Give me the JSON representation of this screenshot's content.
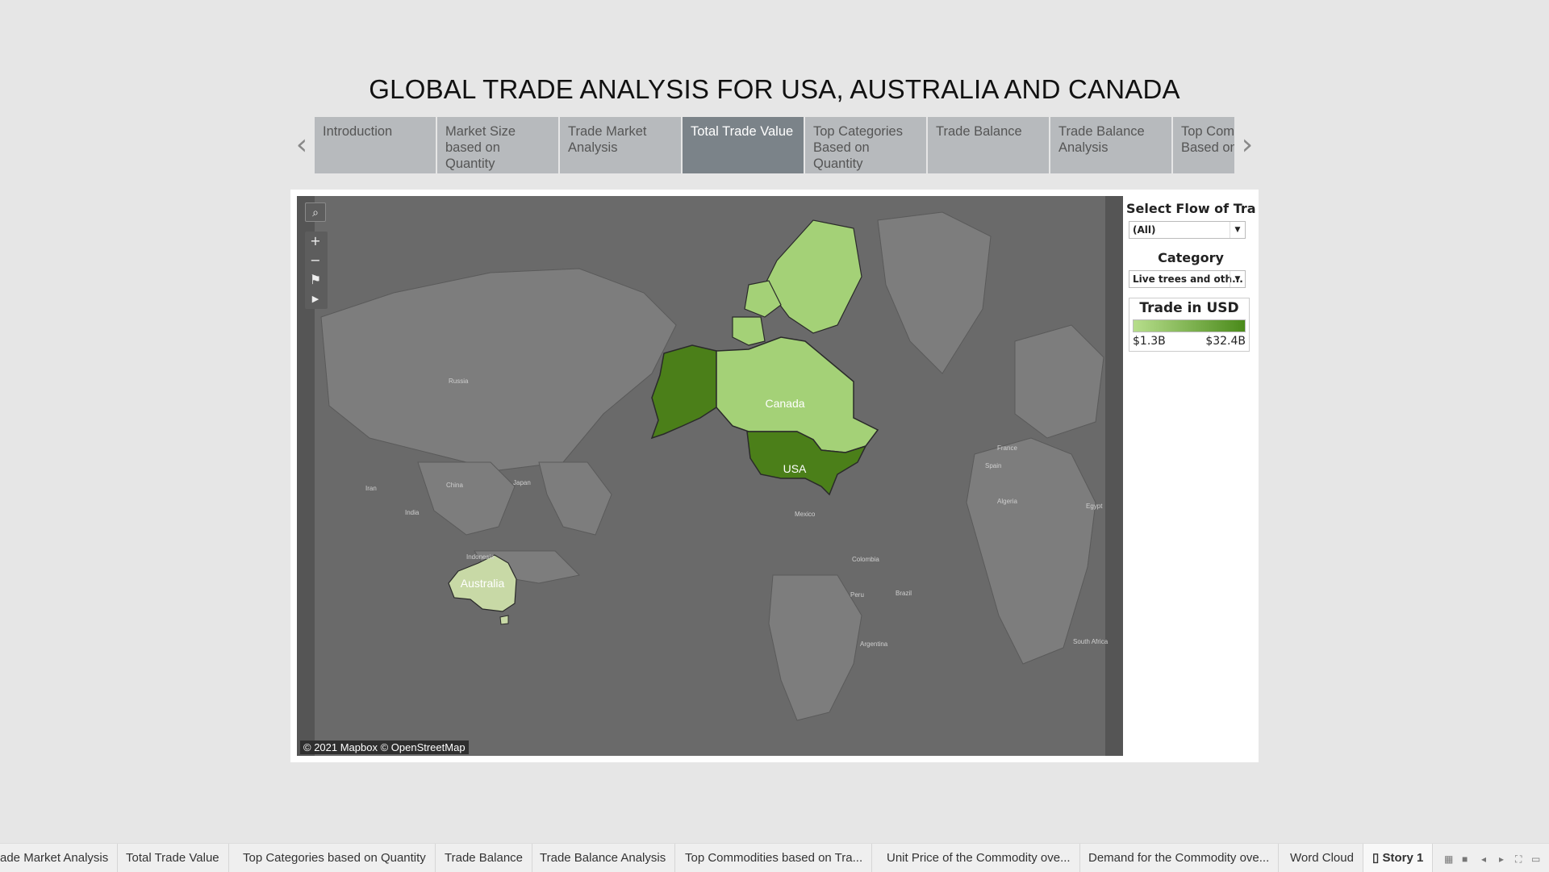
{
  "title": "GLOBAL TRADE ANALYSIS FOR USA, AUSTRALIA AND CANADA",
  "story_tabs": [
    {
      "label": "Introduction",
      "active": false
    },
    {
      "label": "Market Size based on Quantity",
      "active": false
    },
    {
      "label": "Trade Market Analysis",
      "active": false
    },
    {
      "label": "Total Trade Value",
      "active": true
    },
    {
      "label": "Top Categories Based on Quantity",
      "active": false
    },
    {
      "label": "Trade Balance",
      "active": false
    },
    {
      "label": "Trade Balance Analysis",
      "active": false
    },
    {
      "label": "Top Commodities Based on Value",
      "active": false
    }
  ],
  "map": {
    "attribution": "© 2021 Mapbox © OpenStreetMap",
    "countries": [
      {
        "name": "Canada",
        "label": "Canada",
        "color": "#a4d177"
      },
      {
        "name": "USA",
        "label": "USA",
        "color": "#4b7f19"
      },
      {
        "name": "Australia",
        "label": "Australia",
        "color": "#c8d9a6"
      }
    ],
    "basemap_labels": [
      "Russia",
      "China",
      "Japan",
      "India",
      "Iran",
      "Indonesia",
      "Mexico",
      "Colombia",
      "Peru",
      "Brazil",
      "Argentina",
      "France",
      "Spain",
      "Algeria",
      "Egypt",
      "South Africa"
    ]
  },
  "filters": {
    "flow": {
      "title": "Select Flow of Tra..",
      "value": "(All)"
    },
    "category": {
      "title": "Category",
      "value": "Live trees and oth..."
    }
  },
  "legend": {
    "title": "Trade in USD",
    "min": "$1.3B",
    "max": "$32.4B",
    "color_low": "#b7de8c",
    "color_high": "#4a8a1a"
  },
  "sheet_tabs": [
    "ade Market Analysis",
    "Total Trade Value",
    "Top Categories based on Quantity",
    "Trade Balance",
    "Trade Balance Analysis",
    "Top Commodities based on Tra...",
    "Unit Price of the Commodity ove...",
    "Demand for the Commodity ove...",
    "Word Cloud",
    "Story 1"
  ],
  "active_sheet": "Story 1"
}
